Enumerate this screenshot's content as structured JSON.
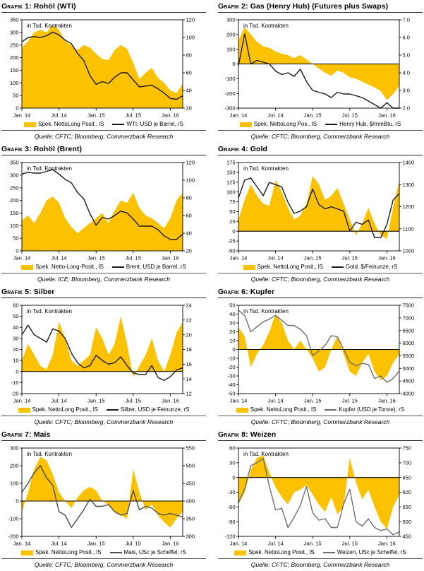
{
  "colors": {
    "area_yellow": "#FCC200",
    "axis": "#000000"
  },
  "chart_data": [
    {
      "type": "area",
      "title_prefix": "Grafik 1:",
      "title": "Rohöl (WTI)",
      "unit_note": "in Tsd. Kontrakten",
      "x_ticks": {
        "labels": [
          "Jan. 14",
          "Jul. 14",
          "Jan. 15",
          "Jul. 15",
          "Jan. 16"
        ],
        "indices": [
          0,
          6,
          12,
          18,
          24
        ]
      },
      "left_axis": {
        "min": 0,
        "max": 350,
        "step": 50
      },
      "right_axis": {
        "min": 20,
        "max": 120,
        "step": 20
      },
      "series": [
        {
          "name": "Spek. NettoLong Posit., lS",
          "kind": "area",
          "axis": "left",
          "color": "#FCC200",
          "values": [
            240,
            265,
            300,
            310,
            300,
            330,
            310,
            265,
            250,
            230,
            250,
            240,
            215,
            195,
            190,
            230,
            250,
            235,
            180,
            115,
            140,
            160,
            120,
            100,
            70,
            60,
            95
          ]
        },
        {
          "name": "WTI, USD je Barrel, rS",
          "kind": "line",
          "axis": "right",
          "color": "#1a1a1a",
          "values": [
            95,
            100,
            101,
            100,
            102,
            106,
            103,
            97,
            93,
            82,
            74,
            57,
            47,
            50,
            48,
            55,
            60,
            60,
            52,
            44,
            45,
            46,
            42,
            37,
            31,
            30,
            34
          ]
        }
      ],
      "source": "Quelle: CFTC; Bloomberg, Commerzbank Research"
    },
    {
      "type": "area",
      "title_prefix": "Grafik 2:",
      "title": "Gas (Henry Hub) (Futures plus Swaps)",
      "unit_note": "in Tsd. Kontrakten",
      "x_ticks": {
        "labels": [
          "Jan. 14",
          "Jul. 14",
          "Jan. 15",
          "Jul. 15",
          "Jan. 16"
        ],
        "indices": [
          0,
          6,
          12,
          18,
          24
        ]
      },
      "left_axis": {
        "min": -300,
        "max": 300,
        "step": 100
      },
      "right_axis": {
        "min": 2,
        "max": 7,
        "step": 1,
        "decimals": 1
      },
      "series": [
        {
          "name": "Spek. NettoLong Pos., lS",
          "kind": "area",
          "axis": "left",
          "color": "#FCC200",
          "values": [
            160,
            250,
            200,
            150,
            120,
            110,
            85,
            70,
            60,
            40,
            60,
            30,
            0,
            -30,
            -60,
            -80,
            -45,
            -60,
            -90,
            -100,
            -120,
            -140,
            -160,
            -185,
            -245,
            -205,
            -150
          ]
        },
        {
          "name": "Henry Hub, $/mmBtu, rS",
          "kind": "line",
          "axis": "right",
          "color": "#1a1a1a",
          "values": [
            4.4,
            6.2,
            4.5,
            4.7,
            4.6,
            4.5,
            4.1,
            3.9,
            4.0,
            3.8,
            4.2,
            3.5,
            3.0,
            2.9,
            2.8,
            2.6,
            2.9,
            2.8,
            2.8,
            2.7,
            2.6,
            2.4,
            2.2,
            2.0,
            2.3,
            2.0,
            1.9
          ]
        }
      ],
      "source": "Quelle: CFTC; Bloomberg, Commerzbank Research"
    },
    {
      "type": "area",
      "title_prefix": "Grafik 3:",
      "title": "Rohöl (Brent)",
      "unit_note": "in Tsd. Kontrakten",
      "x_ticks": {
        "labels": [
          "Jan. 14",
          "Jul. 14",
          "Jan. 15",
          "Jul. 15",
          "Jan. 16"
        ],
        "indices": [
          0,
          6,
          12,
          18,
          24
        ]
      },
      "left_axis": {
        "min": 0,
        "max": 350,
        "step": 50
      },
      "right_axis": {
        "min": 20,
        "max": 120,
        "step": 20
      },
      "series": [
        {
          "name": "Spek. Netto-Long-Posit., lS",
          "kind": "area",
          "axis": "left",
          "color": "#FCC200",
          "values": [
            120,
            140,
            110,
            150,
            200,
            215,
            190,
            130,
            95,
            70,
            90,
            110,
            130,
            150,
            110,
            160,
            200,
            190,
            230,
            170,
            140,
            130,
            110,
            90,
            130,
            200,
            230
          ]
        },
        {
          "name": "Brent, USD je Barrel, rS",
          "kind": "line",
          "axis": "right",
          "color": "#1a1a1a",
          "values": [
            107,
            109,
            108,
            108,
            110,
            112,
            107,
            101,
            97,
            86,
            79,
            62,
            49,
            58,
            56,
            60,
            65,
            63,
            56,
            48,
            48,
            48,
            44,
            37,
            33,
            33,
            39
          ]
        }
      ],
      "source": "Quelle: ICE; Bloomberg, Commerzbank Research"
    },
    {
      "type": "area",
      "title_prefix": "Grafik 4:",
      "title": "Gold",
      "unit_note": "in Tsd. Kontrakten",
      "x_ticks": {
        "labels": [
          "Jan. 14",
          "Jul. 14",
          "Jan. 15",
          "Jul. 15",
          "Jan. 16"
        ],
        "indices": [
          0,
          6,
          12,
          18,
          24
        ]
      },
      "left_axis": {
        "min": -50,
        "max": 175,
        "step": 25
      },
      "right_axis": {
        "min": 1000,
        "max": 1400,
        "step": 100
      },
      "series": [
        {
          "name": "Spek. NettoLong Posit., lS",
          "kind": "area",
          "axis": "left",
          "color": "#FCC200",
          "values": [
            30,
            80,
            120,
            90,
            70,
            65,
            130,
            100,
            60,
            30,
            40,
            70,
            140,
            120,
            80,
            90,
            110,
            70,
            30,
            -10,
            20,
            60,
            20,
            -10,
            -20,
            60,
            130
          ]
        },
        {
          "name": "Gold, $/Feinunze, rS",
          "kind": "line",
          "axis": "right",
          "color": "#1a1a1a",
          "values": [
            1240,
            1320,
            1330,
            1290,
            1250,
            1310,
            1300,
            1290,
            1220,
            1170,
            1180,
            1200,
            1280,
            1210,
            1190,
            1200,
            1190,
            1180,
            1090,
            1130,
            1120,
            1140,
            1060,
            1060,
            1120,
            1230,
            1260
          ]
        }
      ],
      "source": "Quelle: CFTC; Bloomberg, Commerzbank Research"
    },
    {
      "type": "area",
      "title_prefix": "Grafik 5:",
      "title": "Silber",
      "unit_note": "in Tsd. Kontrakten",
      "x_ticks": {
        "labels": [
          "Jan. 14",
          "Jul. 14",
          "Jan. 15",
          "Jul. 15",
          "Jan. 16"
        ],
        "indices": [
          0,
          6,
          12,
          18,
          24
        ]
      },
      "left_axis": {
        "min": -20,
        "max": 60,
        "step": 10
      },
      "right_axis": {
        "min": 12,
        "max": 24,
        "step": 2
      },
      "series": [
        {
          "name": "Spek. NettoLong Posit., lS",
          "kind": "area",
          "axis": "left",
          "color": "#FCC200",
          "values": [
            10,
            25,
            15,
            5,
            2,
            15,
            45,
            30,
            10,
            5,
            10,
            15,
            40,
            30,
            15,
            25,
            50,
            25,
            -5,
            5,
            15,
            30,
            10,
            0,
            15,
            35,
            45
          ]
        },
        {
          "name": "Silber, USD je Feinunze, rS",
          "kind": "line",
          "axis": "right",
          "color": "#1a1a1a",
          "values": [
            20.0,
            21.3,
            20.0,
            19.5,
            19.0,
            20.8,
            20.5,
            19.5,
            17.5,
            16.2,
            15.5,
            15.8,
            17.2,
            16.5,
            16.0,
            16.2,
            17.0,
            15.8,
            14.8,
            14.6,
            14.6,
            15.8,
            14.2,
            13.8,
            14.3,
            15.2,
            15.5
          ]
        }
      ],
      "source": "Quelle: CFTC; Bloomberg, Commerzbank Research"
    },
    {
      "type": "area",
      "title_prefix": "Grafik 6:",
      "title": "Kupfer",
      "unit_note": "in Tsd. Kontrakten",
      "x_ticks": {
        "labels": [
          "Jan. 14",
          "Jul. 14",
          "Jan. 15",
          "Jul. 15",
          "Jan. 16"
        ],
        "indices": [
          0,
          6,
          12,
          18,
          24
        ]
      },
      "left_axis": {
        "min": -50,
        "max": 50,
        "step": 10
      },
      "right_axis": {
        "min": 4000,
        "max": 7500,
        "step": 500
      },
      "series": [
        {
          "name": "Spek. NettoLong Posit., lS",
          "kind": "area",
          "axis": "left",
          "color": "#FCC200",
          "values": [
            25,
            15,
            -20,
            -5,
            5,
            20,
            40,
            30,
            10,
            0,
            10,
            0,
            -10,
            -25,
            -20,
            0,
            15,
            -5,
            -25,
            -30,
            -15,
            -5,
            -25,
            -35,
            -30,
            -15,
            -5
          ]
        },
        {
          "name": "Kupfer (USD je Tonne), rS",
          "kind": "line",
          "axis": "right",
          "color": "#6e6e6e",
          "values": [
            7300,
            7100,
            6450,
            6650,
            6850,
            6950,
            7100,
            6900,
            6700,
            6700,
            6550,
            6300,
            5500,
            5700,
            5900,
            6300,
            6250,
            5750,
            5250,
            5100,
            5200,
            5150,
            4600,
            4700,
            4450,
            4600,
            4900
          ]
        }
      ],
      "source": "Quelle: CFTC; Bloomberg, Commerzbank Research"
    },
    {
      "type": "area",
      "title_prefix": "Grafik 7:",
      "title": "Mais",
      "unit_note": "in Tsd. Kontrakten",
      "x_ticks": {
        "labels": [
          "Jan. 14",
          "Jul. 14",
          "Jan. 15",
          "Jul. 15",
          "Jan. 16"
        ],
        "indices": [
          0,
          6,
          12,
          18,
          24
        ]
      },
      "left_axis": {
        "min": -200,
        "max": 300,
        "step": 100
      },
      "right_axis": {
        "min": 300,
        "max": 550,
        "step": 50
      },
      "series": [
        {
          "name": "Spek. NettoLong Posit., lS",
          "kind": "area",
          "axis": "left",
          "color": "#FCC200",
          "values": [
            -60,
            50,
            180,
            250,
            230,
            150,
            50,
            0,
            -40,
            20,
            60,
            80,
            60,
            0,
            -20,
            -60,
            -80,
            -100,
            180,
            50,
            -50,
            -20,
            -80,
            -120,
            -150,
            -100,
            -60
          ]
        },
        {
          "name": "Mais, USc je Scheffel, rS",
          "kind": "line",
          "axis": "right",
          "color": "#4a4a4a",
          "values": [
            425,
            450,
            480,
            500,
            465,
            445,
            370,
            360,
            325,
            350,
            375,
            405,
            385,
            385,
            390,
            370,
            360,
            365,
            430,
            375,
            385,
            380,
            365,
            360,
            365,
            360,
            355
          ]
        }
      ],
      "source": "Quelle: CFTC; Bloomberg, Commerzbank Research"
    },
    {
      "type": "area",
      "title_prefix": "Grafik 8:",
      "title": "Weizen",
      "unit_note": "in Tsd. Kontrakten",
      "x_ticks": {
        "labels": [
          "Jan. 14",
          "Jul. 14",
          "Jan. 15",
          "Jul. 15",
          "Jan. 16"
        ],
        "indices": [
          0,
          6,
          12,
          18,
          24
        ]
      },
      "left_axis": {
        "min": -120,
        "max": 60,
        "step": 30
      },
      "right_axis": {
        "min": 450,
        "max": 750,
        "step": 50
      },
      "series": [
        {
          "name": "Spek. NettoLong Posit., lS",
          "kind": "area",
          "axis": "left",
          "color": "#FCC200",
          "values": [
            -55,
            -30,
            15,
            40,
            45,
            10,
            -20,
            -40,
            -55,
            -30,
            -25,
            -15,
            -35,
            -55,
            -70,
            -40,
            -75,
            -60,
            40,
            -10,
            -45,
            -25,
            -60,
            -90,
            -105,
            -60,
            -35
          ]
        },
        {
          "name": "Weizen, USc je Scheffel, rS",
          "kind": "line",
          "axis": "right",
          "color": "#6e6e6e",
          "values": [
            565,
            610,
            690,
            700,
            715,
            620,
            540,
            545,
            480,
            515,
            555,
            620,
            530,
            505,
            510,
            480,
            480,
            560,
            610,
            500,
            485,
            510,
            480,
            470,
            475,
            455,
            465
          ]
        }
      ],
      "source": "Quelle: CFTC; Bloomberg, Commerzbank Research"
    }
  ]
}
